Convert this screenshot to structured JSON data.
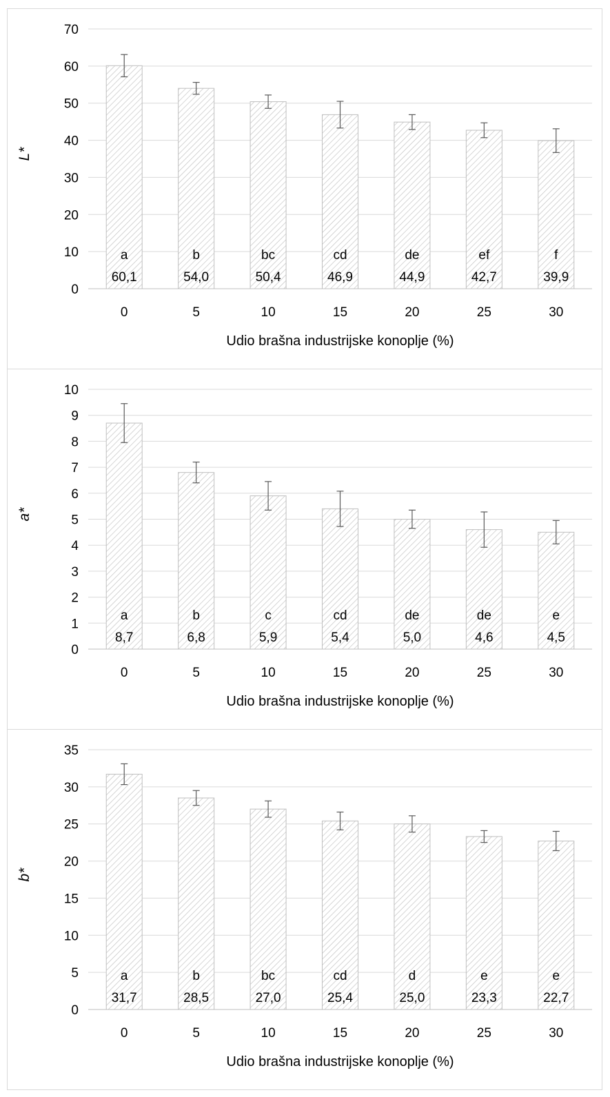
{
  "chart_data": [
    {
      "type": "bar",
      "title": "",
      "xlabel": "Udio brašna industrijske konoplje (%)",
      "ylabel": "L*",
      "categories": [
        "0",
        "5",
        "10",
        "15",
        "20",
        "25",
        "30"
      ],
      "values": [
        60.1,
        54.0,
        50.4,
        46.9,
        44.9,
        42.7,
        39.9
      ],
      "errors": [
        3.0,
        1.6,
        1.8,
        3.6,
        2.0,
        2.0,
        3.2
      ],
      "value_labels": [
        "60,1",
        "54,0",
        "50,4",
        "46,9",
        "44,9",
        "42,7",
        "39,9"
      ],
      "letters": [
        "a",
        "b",
        "bc",
        "cd",
        "de",
        "ef",
        "f"
      ],
      "ylim": [
        0,
        70
      ],
      "yticks": [
        "0",
        "10",
        "20",
        "30",
        "40",
        "50",
        "60",
        "70"
      ],
      "grid": true,
      "bar_fill": "diagonal-hatch",
      "colors": {
        "hatch": "#bfbfbf",
        "bar_border": "#bfbfbf",
        "grid": "#d9d9d9",
        "error_bar": "#595959",
        "axis": "#bfbfbf"
      }
    },
    {
      "type": "bar",
      "title": "",
      "xlabel": "Udio brašna industrijske konoplje (%)",
      "ylabel": "a*",
      "categories": [
        "0",
        "5",
        "10",
        "15",
        "20",
        "25",
        "30"
      ],
      "values": [
        8.7,
        6.8,
        5.9,
        5.4,
        5.0,
        4.6,
        4.5
      ],
      "errors": [
        0.75,
        0.4,
        0.55,
        0.68,
        0.35,
        0.68,
        0.45
      ],
      "value_labels": [
        "8,7",
        "6,8",
        "5,9",
        "5,4",
        "5,0",
        "4,6",
        "4,5"
      ],
      "letters": [
        "a",
        "b",
        "c",
        "cd",
        "de",
        "de",
        "e"
      ],
      "ylim": [
        0,
        10
      ],
      "yticks": [
        "0",
        "1",
        "2",
        "3",
        "4",
        "5",
        "6",
        "7",
        "8",
        "9",
        "10"
      ],
      "grid": true,
      "bar_fill": "diagonal-hatch",
      "colors": {
        "hatch": "#bfbfbf",
        "bar_border": "#bfbfbf",
        "grid": "#d9d9d9",
        "error_bar": "#595959",
        "axis": "#bfbfbf"
      }
    },
    {
      "type": "bar",
      "title": "",
      "xlabel": "Udio brašna industrijske konoplje (%)",
      "ylabel": "b*",
      "categories": [
        "0",
        "5",
        "10",
        "15",
        "20",
        "25",
        "30"
      ],
      "values": [
        31.7,
        28.5,
        27.0,
        25.4,
        25.0,
        23.3,
        22.7
      ],
      "errors": [
        1.4,
        1.0,
        1.1,
        1.2,
        1.1,
        0.8,
        1.3
      ],
      "value_labels": [
        "31,7",
        "28,5",
        "27,0",
        "25,4",
        "25,0",
        "23,3",
        "22,7"
      ],
      "letters": [
        "a",
        "b",
        "bc",
        "cd",
        "d",
        "e",
        "e"
      ],
      "ylim": [
        0,
        35
      ],
      "yticks": [
        "0",
        "5",
        "10",
        "15",
        "20",
        "25",
        "30",
        "35"
      ],
      "grid": true,
      "bar_fill": "diagonal-hatch",
      "colors": {
        "hatch": "#bfbfbf",
        "bar_border": "#bfbfbf",
        "grid": "#d9d9d9",
        "error_bar": "#595959",
        "axis": "#bfbfbf"
      }
    }
  ]
}
